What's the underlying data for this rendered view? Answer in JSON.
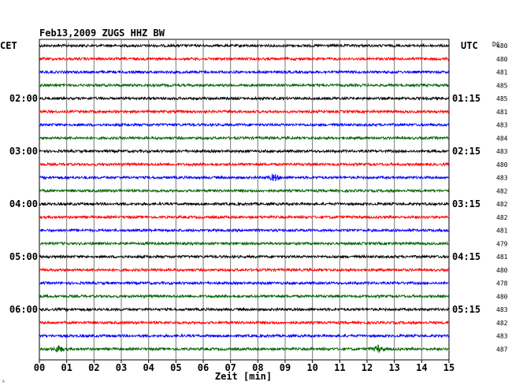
{
  "chart_data": {
    "type": "line",
    "title": "Feb13,2009   ZUGS HHZ BW",
    "left_header": "CET",
    "right_header": "UTC",
    "dc_header": "DC",
    "xlabel": "Zeit [min]",
    "x_ticks": [
      "00",
      "01",
      "02",
      "03",
      "04",
      "05",
      "06",
      "07",
      "08",
      "09",
      "10",
      "11",
      "12",
      "13",
      "14",
      "15"
    ],
    "xlim": [
      0,
      15
    ],
    "left_time_labels": [
      {
        "row": 4,
        "label": "02:00"
      },
      {
        "row": 8,
        "label": "03:00"
      },
      {
        "row": 12,
        "label": "04:00"
      },
      {
        "row": 16,
        "label": "05:00"
      },
      {
        "row": 20,
        "label": "06:00"
      }
    ],
    "right_time_labels": [
      {
        "row": 4,
        "label": "01:15"
      },
      {
        "row": 8,
        "label": "02:15"
      },
      {
        "row": 12,
        "label": "03:15"
      },
      {
        "row": 16,
        "label": "04:15"
      },
      {
        "row": 20,
        "label": "05:15"
      }
    ],
    "dc_values": [
      "480",
      "480",
      "481",
      "485",
      "485",
      "481",
      "483",
      "484",
      "483",
      "480",
      "483",
      "482",
      "482",
      "482",
      "481",
      "479",
      "481",
      "480",
      "478",
      "480",
      "483",
      "482",
      "483",
      "487"
    ],
    "trace_colors": [
      "#000000",
      "#ff0000",
      "#0000ff",
      "#006400"
    ],
    "grid": true,
    "events": [
      {
        "row": 10,
        "minute": 8.6,
        "description": "small event"
      },
      {
        "row": 23,
        "minute": 0.7,
        "description": "small event"
      },
      {
        "row": 23,
        "minute": 12.4,
        "description": "small event"
      }
    ],
    "corner_mark": "ᴬ"
  }
}
